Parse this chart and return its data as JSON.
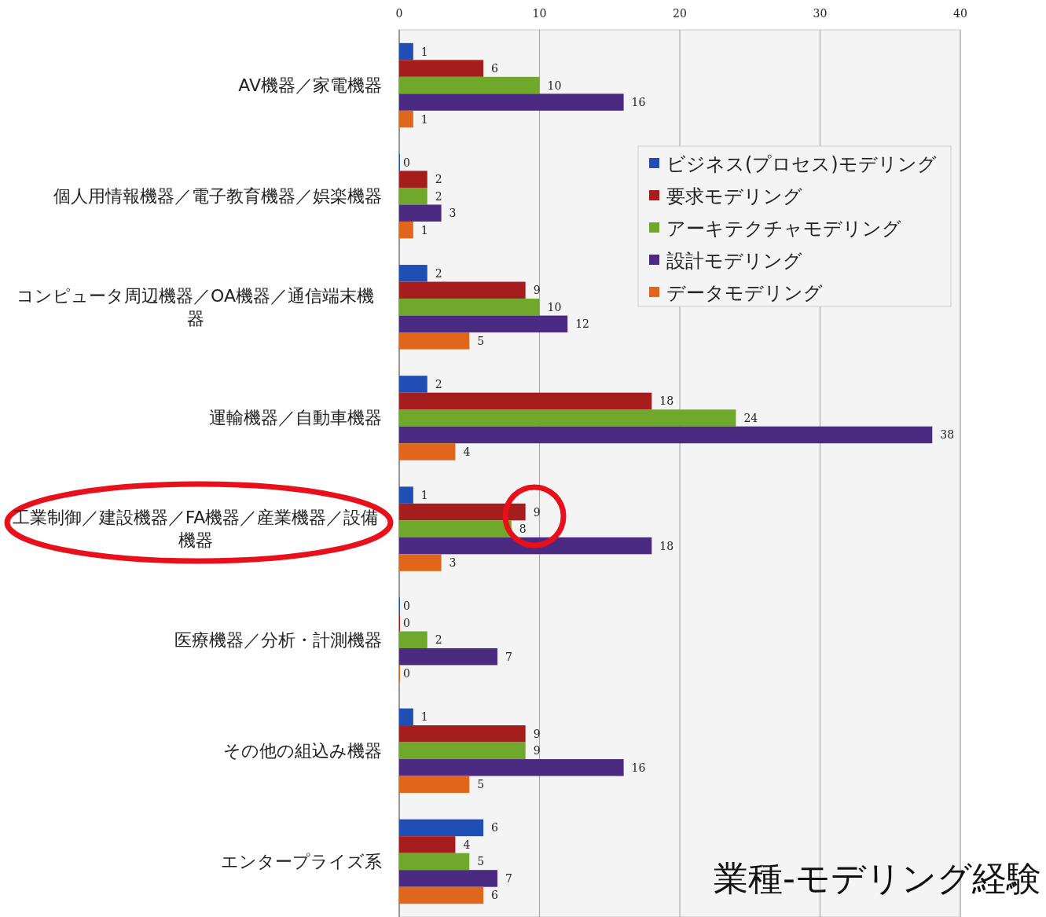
{
  "chart_data": {
    "type": "bar",
    "orientation": "horizontal",
    "title": "業種-モデリング経験",
    "categories": [
      "AV機器／家電機器",
      "個人用情報機器／電子教育機器／娯楽機器",
      "コンピュータ周辺機器／OA機器／通信端末機器",
      "運輸機器／自動車機器",
      "工業制御／建設機器／FA機器／産業機器／設備機器",
      "医療機器／分析・計測機器",
      "その他の組込み機器",
      "エンタープライズ系"
    ],
    "series": [
      {
        "name": "ビジネス(プロセス)モデリング",
        "color": "#1f4fb5",
        "values": [
          1,
          0,
          2,
          2,
          1,
          0,
          1,
          6
        ]
      },
      {
        "name": "要求モデリング",
        "color": "#a51d1d",
        "values": [
          6,
          2,
          9,
          18,
          9,
          0,
          9,
          4
        ]
      },
      {
        "name": "アーキテクチャモデリング",
        "color": "#6fa82a",
        "values": [
          10,
          2,
          10,
          24,
          8,
          2,
          9,
          5
        ]
      },
      {
        "name": "設計モデリング",
        "color": "#4b2a82",
        "values": [
          16,
          3,
          12,
          38,
          18,
          7,
          16,
          7
        ]
      },
      {
        "name": "データモデリング",
        "color": "#e0661c",
        "values": [
          1,
          1,
          5,
          4,
          3,
          0,
          5,
          6
        ]
      }
    ],
    "xlim": [
      0,
      40
    ],
    "xticks": [
      0,
      10,
      20,
      30,
      40
    ],
    "grid": "x",
    "legend": "top right",
    "data_labels": true
  }
}
